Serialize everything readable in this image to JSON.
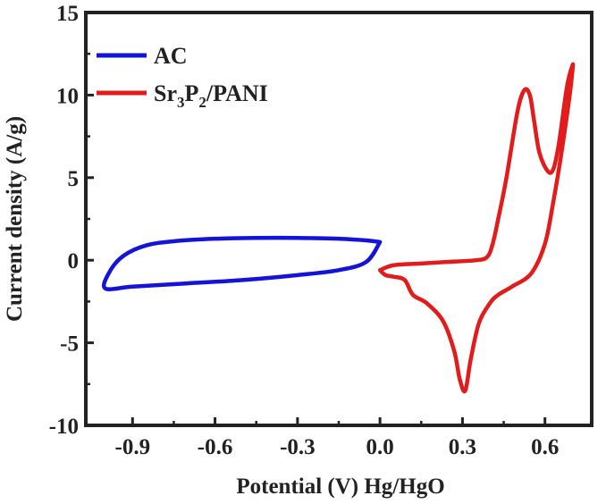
{
  "chart_data": {
    "type": "line",
    "xlabel": "Potential (V) Hg/HgO",
    "ylabel": "Current density (A/g)",
    "xlim": [
      -1.07,
      0.77
    ],
    "ylim": [
      -10,
      15
    ],
    "xticks": [
      -0.9,
      -0.6,
      -0.3,
      0.0,
      0.3,
      0.6
    ],
    "xtick_labels": [
      "-0.9",
      "-0.6",
      "-0.3",
      "0.0",
      "0.3",
      "0.6"
    ],
    "yticks": [
      -10,
      -5,
      0,
      5,
      10,
      15
    ],
    "ytick_labels": [
      "-10",
      "-5",
      "0",
      "5",
      "10",
      "15"
    ],
    "legend_position": "top-left",
    "grid": false,
    "series": [
      {
        "name": "AC",
        "legend_label": "AC",
        "color": "#1414d8",
        "closed": true,
        "x": [
          0.0,
          -0.05,
          -0.15,
          -0.3,
          -0.45,
          -0.6,
          -0.75,
          -0.85,
          -0.93,
          -0.98,
          -1.0,
          -0.9,
          -0.7,
          -0.5,
          -0.3,
          -0.15,
          -0.05,
          0.0
        ],
        "y": [
          1.1,
          1.2,
          1.3,
          1.35,
          1.35,
          1.3,
          1.15,
          0.9,
          0.3,
          -0.6,
          -1.7,
          -1.6,
          -1.4,
          -1.2,
          -0.9,
          -0.6,
          -0.1,
          1.1
        ]
      },
      {
        "name": "Sr3P2/PANI",
        "legend_label": "Sr3P2/PANI",
        "color": "#e21b1b",
        "closed": true,
        "x": [
          0.0,
          0.05,
          0.15,
          0.25,
          0.35,
          0.39,
          0.41,
          0.43,
          0.46,
          0.5,
          0.525,
          0.545,
          0.56,
          0.58,
          0.61,
          0.63,
          0.65,
          0.68,
          0.7,
          0.7,
          0.69,
          0.66,
          0.63,
          0.6,
          0.55,
          0.48,
          0.43,
          0.4,
          0.36,
          0.33,
          0.31,
          0.29,
          0.27,
          0.23,
          0.17,
          0.12,
          0.09,
          0.05,
          0.02,
          0.0
        ],
        "y": [
          -0.6,
          -0.3,
          -0.2,
          -0.1,
          0.0,
          0.2,
          1.0,
          2.5,
          5.0,
          9.0,
          10.3,
          10.0,
          8.5,
          6.5,
          5.4,
          5.5,
          7.0,
          10.5,
          11.8,
          11.5,
          10.0,
          6.5,
          3.5,
          1.0,
          -0.8,
          -1.6,
          -2.1,
          -2.6,
          -3.8,
          -6.0,
          -7.9,
          -7.2,
          -5.5,
          -3.7,
          -2.6,
          -2.1,
          -1.2,
          -1.0,
          -0.9,
          -0.6
        ]
      }
    ]
  }
}
